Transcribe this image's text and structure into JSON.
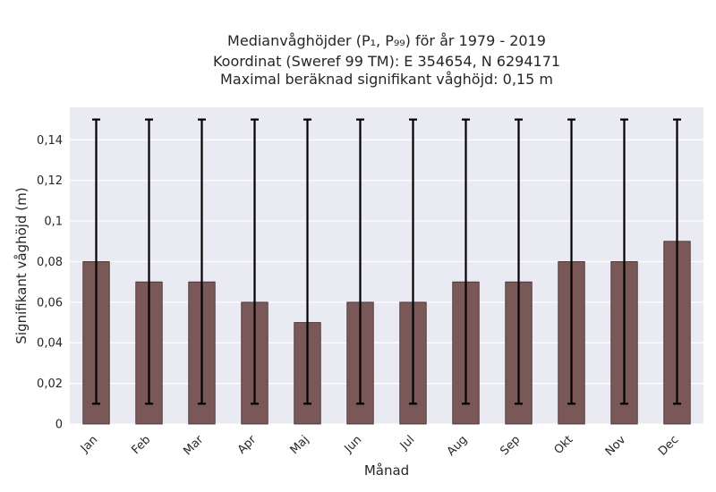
{
  "chart_data": {
    "type": "bar",
    "title_lines": [
      "Medianvåghöjder (P₁, P₉₉) för år 1979 - 2019",
      "Koordinat (Sweref 99 TM): E 354654, N 6294171",
      "Maximal beräknad signifikant våghöjd: 0,15 m"
    ],
    "xlabel": "Månad",
    "ylabel": "Signifikant våghöjd (m)",
    "categories": [
      "Jan",
      "Feb",
      "Mar",
      "Apr",
      "Maj",
      "Jun",
      "Jul",
      "Aug",
      "Sep",
      "Okt",
      "Nov",
      "Dec"
    ],
    "values": [
      0.08,
      0.07,
      0.07,
      0.06,
      0.05,
      0.06,
      0.06,
      0.07,
      0.07,
      0.08,
      0.08,
      0.09
    ],
    "error_low": [
      0.01,
      0.01,
      0.01,
      0.01,
      0.01,
      0.01,
      0.01,
      0.01,
      0.01,
      0.01,
      0.01,
      0.01
    ],
    "error_high": [
      0.15,
      0.15,
      0.15,
      0.15,
      0.15,
      0.15,
      0.15,
      0.15,
      0.15,
      0.15,
      0.15,
      0.15
    ],
    "ylim": [
      0,
      0.156
    ],
    "yticks": [
      0,
      0.02,
      0.04,
      0.06,
      0.08,
      0.1,
      0.12,
      0.14
    ],
    "ytick_labels": [
      "0",
      "0,02",
      "0,04",
      "0,06",
      "0,08",
      "0,1",
      "0,12",
      "0,14"
    ],
    "grid": true,
    "colors": {
      "bar": "#7a5858",
      "bar_edge": "#3d2a2a",
      "error": "#000000",
      "plot_bg": "#eaeaf2",
      "grid": "#ffffff"
    }
  }
}
